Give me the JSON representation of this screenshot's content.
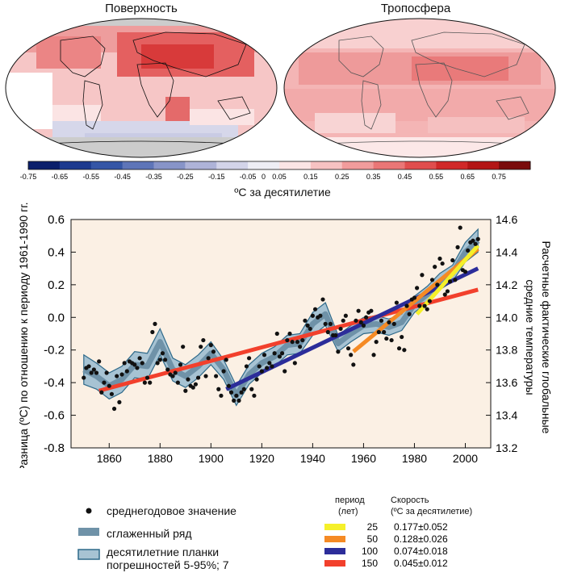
{
  "maps": {
    "left_title": "Поверхность",
    "right_title": "Тропосфера"
  },
  "colorbar": {
    "ticks": [
      "-0.75",
      "-0.65",
      "-0.55",
      "-0.45",
      "-0.35",
      "-0.25",
      "-0.15",
      "-0.05",
      "0",
      "0.05",
      "0.15",
      "0.25",
      "0.35",
      "0.45",
      "0.55",
      "0.65",
      "0.75"
    ],
    "colors": [
      "#0b1f6b",
      "#1d3a8f",
      "#3556a6",
      "#5e75b8",
      "#8794c8",
      "#aeb3d8",
      "#d3d4e9",
      "#eeeef5",
      "#fbe5e5",
      "#f6c2c2",
      "#f19c9c",
      "#ea7676",
      "#e04d4d",
      "#d02828",
      "#b31515",
      "#7a0b0b"
    ],
    "label": "ºС за десятилетие"
  },
  "chart_data": {
    "type": "scatter",
    "x": [
      1850,
      1851,
      1852,
      1853,
      1854,
      1855,
      1856,
      1857,
      1858,
      1859,
      1860,
      1861,
      1862,
      1863,
      1864,
      1865,
      1866,
      1867,
      1868,
      1869,
      1870,
      1871,
      1872,
      1873,
      1874,
      1875,
      1876,
      1877,
      1878,
      1879,
      1880,
      1881,
      1882,
      1883,
      1884,
      1885,
      1886,
      1887,
      1888,
      1889,
      1890,
      1891,
      1892,
      1893,
      1894,
      1895,
      1896,
      1897,
      1898,
      1899,
      1900,
      1901,
      1902,
      1903,
      1904,
      1905,
      1906,
      1907,
      1908,
      1909,
      1910,
      1911,
      1912,
      1913,
      1914,
      1915,
      1916,
      1917,
      1918,
      1919,
      1920,
      1921,
      1922,
      1923,
      1924,
      1925,
      1926,
      1927,
      1928,
      1929,
      1930,
      1931,
      1932,
      1933,
      1934,
      1935,
      1936,
      1937,
      1938,
      1939,
      1940,
      1941,
      1942,
      1943,
      1944,
      1945,
      1946,
      1947,
      1948,
      1949,
      1950,
      1951,
      1952,
      1953,
      1954,
      1955,
      1956,
      1957,
      1958,
      1959,
      1960,
      1961,
      1962,
      1963,
      1964,
      1965,
      1966,
      1967,
      1968,
      1969,
      1970,
      1971,
      1972,
      1973,
      1974,
      1975,
      1976,
      1977,
      1978,
      1979,
      1980,
      1981,
      1982,
      1983,
      1984,
      1985,
      1986,
      1987,
      1988,
      1989,
      1990,
      1991,
      1992,
      1993,
      1994,
      1995,
      1996,
      1997,
      1998,
      1999,
      2000,
      2001,
      2002,
      2003,
      2004,
      2005
    ],
    "values": [
      -0.37,
      -0.31,
      -0.3,
      -0.34,
      -0.32,
      -0.34,
      -0.27,
      -0.46,
      -0.4,
      -0.34,
      -0.42,
      -0.47,
      -0.56,
      -0.36,
      -0.52,
      -0.35,
      -0.28,
      -0.33,
      -0.27,
      -0.28,
      -0.29,
      -0.31,
      -0.25,
      -0.28,
      -0.4,
      -0.37,
      -0.4,
      -0.09,
      -0.04,
      -0.28,
      -0.26,
      -0.22,
      -0.26,
      -0.32,
      -0.35,
      -0.36,
      -0.34,
      -0.4,
      -0.29,
      -0.18,
      -0.45,
      -0.38,
      -0.42,
      -0.43,
      -0.41,
      -0.37,
      -0.18,
      -0.14,
      -0.36,
      -0.25,
      -0.17,
      -0.21,
      -0.36,
      -0.44,
      -0.48,
      -0.33,
      -0.26,
      -0.42,
      -0.46,
      -0.51,
      -0.48,
      -0.51,
      -0.46,
      -0.44,
      -0.3,
      -0.25,
      -0.44,
      -0.48,
      -0.38,
      -0.3,
      -0.33,
      -0.23,
      -0.31,
      -0.28,
      -0.3,
      -0.22,
      -0.1,
      -0.24,
      -0.22,
      -0.33,
      -0.14,
      -0.1,
      -0.15,
      -0.28,
      -0.15,
      -0.18,
      -0.14,
      -0.02,
      -0.05,
      -0.07,
      0.01,
      0.05,
      0.0,
      0.01,
      0.11,
      -0.04,
      -0.09,
      -0.04,
      -0.11,
      -0.11,
      -0.21,
      -0.07,
      -0.02,
      0.01,
      -0.19,
      -0.23,
      -0.29,
      -0.02,
      0.04,
      -0.03,
      -0.05,
      0.0,
      0.03,
      0.04,
      -0.23,
      -0.15,
      -0.09,
      -0.02,
      -0.09,
      -0.13,
      -0.03,
      -0.14,
      -0.04,
      0.09,
      -0.19,
      -0.12,
      -0.2,
      0.07,
      0.02,
      0.11,
      0.12,
      0.18,
      0.07,
      0.26,
      0.07,
      0.05,
      0.1,
      0.23,
      0.31,
      0.2,
      0.36,
      0.33,
      0.14,
      0.16,
      0.22,
      0.35,
      0.23,
      0.43,
      0.55,
      0.29,
      0.28,
      0.41,
      0.46,
      0.47,
      0.45,
      0.48
    ],
    "title": "",
    "xlabel": "",
    "ylabel": "Разница (ºС) по отношению к периоду 1961-1990 гг.",
    "y2label_line1": "Расчетные фактические глобальные",
    "y2label_line2": "средние температуры",
    "xlim": [
      1845,
      2010
    ],
    "ylim": [
      -0.8,
      0.6
    ],
    "y2lim": [
      13.2,
      14.6
    ],
    "xticks": [
      "1860",
      "1880",
      "1900",
      "1920",
      "1940",
      "1960",
      "1980",
      "2000"
    ],
    "yticks": [
      "-0.8",
      "-0.6",
      "-0.4",
      "-0.2",
      "0.0",
      "0.2",
      "0.4",
      "0.6"
    ],
    "y2ticks": [
      "13.2",
      "13.4",
      "13.6",
      "13.8",
      "14.0",
      "14.2",
      "14.4",
      "14.6"
    ],
    "smoothed": {
      "x": [
        1850,
        1855,
        1860,
        1865,
        1870,
        1875,
        1880,
        1885,
        1890,
        1895,
        1900,
        1905,
        1910,
        1915,
        1920,
        1925,
        1930,
        1935,
        1940,
        1945,
        1950,
        1955,
        1960,
        1965,
        1970,
        1975,
        1980,
        1985,
        1990,
        1995,
        2000,
        2005
      ],
      "y": [
        -0.32,
        -0.36,
        -0.42,
        -0.38,
        -0.29,
        -0.3,
        -0.15,
        -0.32,
        -0.36,
        -0.3,
        -0.22,
        -0.32,
        -0.48,
        -0.35,
        -0.28,
        -0.24,
        -0.17,
        -0.16,
        -0.04,
        0.02,
        -0.16,
        -0.1,
        -0.05,
        -0.04,
        -0.06,
        -0.03,
        0.08,
        0.14,
        0.22,
        0.27,
        0.4,
        0.47
      ],
      "err": [
        0.09,
        0.08,
        0.08,
        0.08,
        0.08,
        0.08,
        0.08,
        0.07,
        0.07,
        0.07,
        0.07,
        0.06,
        0.06,
        0.06,
        0.06,
        0.06,
        0.06,
        0.06,
        0.07,
        0.07,
        0.05,
        0.05,
        0.05,
        0.05,
        0.05,
        0.05,
        0.05,
        0.05,
        0.05,
        0.05,
        0.06,
        0.07
      ]
    },
    "trends": [
      {
        "period": "25",
        "rate": "0.177±0.052",
        "color": "#f5f02a",
        "x": [
          1981,
          2005
        ],
        "y": [
          0.02,
          0.44
        ]
      },
      {
        "period": "50",
        "rate": "0.128±0.026",
        "color": "#f58a24",
        "x": [
          1956,
          2005
        ],
        "y": [
          -0.21,
          0.42
        ]
      },
      {
        "period": "100",
        "rate": "0.074±0.018",
        "color": "#2c2d9a",
        "x": [
          1906,
          2005
        ],
        "y": [
          -0.44,
          0.3
        ]
      },
      {
        "period": "150",
        "rate": "0.045±0.012",
        "color": "#f2402c",
        "x": [
          1856,
          2005
        ],
        "y": [
          -0.45,
          0.17
        ]
      }
    ]
  },
  "legend": {
    "annual": "среднегодовое значение",
    "smoothed": "сглаженный ряд",
    "errorbar_line1": "десятилетние планки",
    "errorbar_line2": "погрешностей 5-95%; 7",
    "period_header_line1": "период",
    "period_header_line2": "(лет)",
    "rate_header_line1": "Скорость",
    "rate_header_line2": "(ºС за десятилетие)"
  }
}
